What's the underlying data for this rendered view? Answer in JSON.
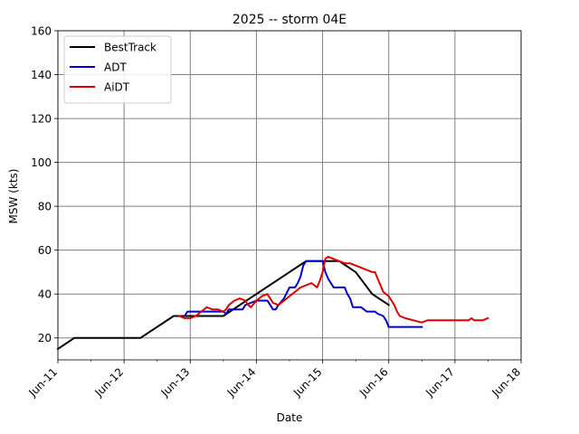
{
  "chart_data": {
    "type": "line",
    "title": "2025 -- storm 04E",
    "xlabel": "Date",
    "ylabel": "MSW (kts)",
    "xlim": [
      "2025-06-11",
      "2025-06-18"
    ],
    "ylim": [
      10,
      160
    ],
    "x_ticks": [
      "2025-06-11",
      "2025-06-12",
      "2025-06-13",
      "2025-06-14",
      "2025-06-15",
      "2025-06-16",
      "2025-06-17",
      "2025-06-18"
    ],
    "x_tick_labels": [
      "Jun-11",
      "Jun-12",
      "Jun-13",
      "Jun-14",
      "Jun-15",
      "Jun-16",
      "Jun-17",
      "Jun-18"
    ],
    "y_ticks": [
      20,
      40,
      60,
      80,
      100,
      120,
      140,
      160
    ],
    "grid": true,
    "legend": "top-left",
    "series": [
      {
        "name": "BestTrack",
        "color": "#000000",
        "points": [
          [
            "2025-06-11T00:00",
            15
          ],
          [
            "2025-06-11T06:00",
            20
          ],
          [
            "2025-06-11T12:00",
            20
          ],
          [
            "2025-06-11T18:00",
            20
          ],
          [
            "2025-06-12T00:00",
            20
          ],
          [
            "2025-06-12T06:00",
            20
          ],
          [
            "2025-06-12T12:00",
            25
          ],
          [
            "2025-06-12T18:00",
            30
          ],
          [
            "2025-06-13T00:00",
            30
          ],
          [
            "2025-06-13T06:00",
            30
          ],
          [
            "2025-06-13T12:00",
            30
          ],
          [
            "2025-06-13T18:00",
            35
          ],
          [
            "2025-06-14T00:00",
            40
          ],
          [
            "2025-06-14T06:00",
            45
          ],
          [
            "2025-06-14T12:00",
            50
          ],
          [
            "2025-06-14T18:00",
            55
          ],
          [
            "2025-06-15T00:00",
            55
          ],
          [
            "2025-06-15T06:00",
            55
          ],
          [
            "2025-06-15T12:00",
            50
          ],
          [
            "2025-06-15T18:00",
            40
          ],
          [
            "2025-06-16T00:00",
            35
          ]
        ]
      },
      {
        "name": "ADT",
        "color": "#0000cc",
        "points": [
          [
            "2025-06-12T22:00",
            30
          ],
          [
            "2025-06-12T23:00",
            32
          ],
          [
            "2025-06-13T02:00",
            32
          ],
          [
            "2025-06-13T05:00",
            32
          ],
          [
            "2025-06-13T06:00",
            32
          ],
          [
            "2025-06-13T09:00",
            32
          ],
          [
            "2025-06-13T12:00",
            32
          ],
          [
            "2025-06-13T13:00",
            31
          ],
          [
            "2025-06-13T14:00",
            33
          ],
          [
            "2025-06-13T19:00",
            33
          ],
          [
            "2025-06-13T20:00",
            35
          ],
          [
            "2025-06-14T00:00",
            37
          ],
          [
            "2025-06-14T02:00",
            37
          ],
          [
            "2025-06-14T04:00",
            37
          ],
          [
            "2025-06-14T05:00",
            35
          ],
          [
            "2025-06-14T06:00",
            33
          ],
          [
            "2025-06-14T07:00",
            33
          ],
          [
            "2025-06-14T08:00",
            35
          ],
          [
            "2025-06-14T10:00",
            38
          ],
          [
            "2025-06-14T12:00",
            43
          ],
          [
            "2025-06-14T14:00",
            43
          ],
          [
            "2025-06-14T15:00",
            45
          ],
          [
            "2025-06-14T16:00",
            48
          ],
          [
            "2025-06-14T17:00",
            53
          ],
          [
            "2025-06-14T18:00",
            55
          ],
          [
            "2025-06-14T21:00",
            55
          ],
          [
            "2025-06-15T00:00",
            55
          ],
          [
            "2025-06-15T01:00",
            50
          ],
          [
            "2025-06-15T02:00",
            47
          ],
          [
            "2025-06-15T03:00",
            45
          ],
          [
            "2025-06-15T04:00",
            43
          ],
          [
            "2025-06-15T06:00",
            43
          ],
          [
            "2025-06-15T08:00",
            43
          ],
          [
            "2025-06-15T09:00",
            40
          ],
          [
            "2025-06-15T10:00",
            38
          ],
          [
            "2025-06-15T11:00",
            34
          ],
          [
            "2025-06-15T14:00",
            34
          ],
          [
            "2025-06-15T15:00",
            33
          ],
          [
            "2025-06-15T16:00",
            32
          ],
          [
            "2025-06-15T19:00",
            32
          ],
          [
            "2025-06-15T20:00",
            31
          ],
          [
            "2025-06-15T22:00",
            30
          ],
          [
            "2025-06-15T23:00",
            28
          ],
          [
            "2025-06-16T00:00",
            25
          ],
          [
            "2025-06-16T06:00",
            25
          ],
          [
            "2025-06-16T12:00",
            25
          ]
        ]
      },
      {
        "name": "AiDT",
        "color": "#dd0000",
        "points": [
          [
            "2025-06-12T20:00",
            30
          ],
          [
            "2025-06-12T22:00",
            29
          ],
          [
            "2025-06-13T00:00",
            29
          ],
          [
            "2025-06-13T02:00",
            30
          ],
          [
            "2025-06-13T04:00",
            32
          ],
          [
            "2025-06-13T06:00",
            34
          ],
          [
            "2025-06-13T08:00",
            33
          ],
          [
            "2025-06-13T10:00",
            33
          ],
          [
            "2025-06-13T12:00",
            32
          ],
          [
            "2025-06-13T13:00",
            33
          ],
          [
            "2025-06-13T14:00",
            35
          ],
          [
            "2025-06-13T16:00",
            37
          ],
          [
            "2025-06-13T18:00",
            38
          ],
          [
            "2025-06-13T20:00",
            37
          ],
          [
            "2025-06-13T21:00",
            35
          ],
          [
            "2025-06-13T22:00",
            34
          ],
          [
            "2025-06-14T00:00",
            37
          ],
          [
            "2025-06-14T02:00",
            39
          ],
          [
            "2025-06-14T04:00",
            40
          ],
          [
            "2025-06-14T05:00",
            38
          ],
          [
            "2025-06-14T06:00",
            36
          ],
          [
            "2025-06-14T08:00",
            35
          ],
          [
            "2025-06-14T10:00",
            37
          ],
          [
            "2025-06-14T12:00",
            39
          ],
          [
            "2025-06-14T14:00",
            41
          ],
          [
            "2025-06-14T16:00",
            43
          ],
          [
            "2025-06-14T18:00",
            44
          ],
          [
            "2025-06-14T20:00",
            45
          ],
          [
            "2025-06-14T21:00",
            44
          ],
          [
            "2025-06-14T22:00",
            43
          ],
          [
            "2025-06-14T23:00",
            46
          ],
          [
            "2025-06-15T00:00",
            50
          ],
          [
            "2025-06-15T01:00",
            56
          ],
          [
            "2025-06-15T02:00",
            57
          ],
          [
            "2025-06-15T04:00",
            56
          ],
          [
            "2025-06-15T06:00",
            55
          ],
          [
            "2025-06-15T08:00",
            54
          ],
          [
            "2025-06-15T10:00",
            54
          ],
          [
            "2025-06-15T12:00",
            53
          ],
          [
            "2025-06-15T14:00",
            52
          ],
          [
            "2025-06-15T16:00",
            51
          ],
          [
            "2025-06-15T18:00",
            50
          ],
          [
            "2025-06-15T19:00",
            50
          ],
          [
            "2025-06-15T20:00",
            47
          ],
          [
            "2025-06-15T21:00",
            44
          ],
          [
            "2025-06-15T22:00",
            41
          ],
          [
            "2025-06-16T00:00",
            39
          ],
          [
            "2025-06-16T01:00",
            37
          ],
          [
            "2025-06-16T02:00",
            35
          ],
          [
            "2025-06-16T03:00",
            32
          ],
          [
            "2025-06-16T04:00",
            30
          ],
          [
            "2025-06-16T06:00",
            29
          ],
          [
            "2025-06-16T09:00",
            28
          ],
          [
            "2025-06-16T12:00",
            27
          ],
          [
            "2025-06-16T14:00",
            28
          ],
          [
            "2025-06-16T16:00",
            28
          ],
          [
            "2025-06-16T18:00",
            28
          ],
          [
            "2025-06-16T20:00",
            28
          ],
          [
            "2025-06-16T22:00",
            28
          ],
          [
            "2025-06-17T00:00",
            28
          ],
          [
            "2025-06-17T02:00",
            28
          ],
          [
            "2025-06-17T05:00",
            28
          ],
          [
            "2025-06-17T06:00",
            29
          ],
          [
            "2025-06-17T07:00",
            28
          ],
          [
            "2025-06-17T10:00",
            28
          ],
          [
            "2025-06-17T12:00",
            29
          ]
        ]
      }
    ]
  }
}
